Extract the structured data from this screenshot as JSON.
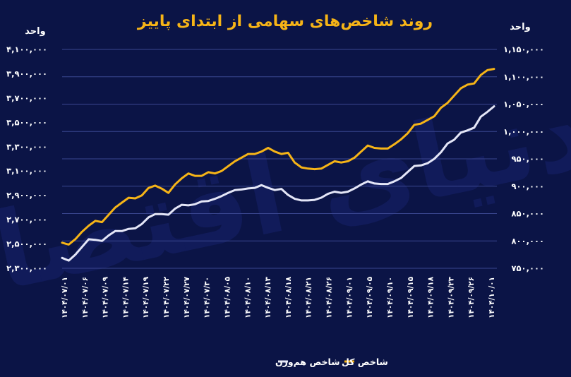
{
  "chart_data": {
    "type": "line",
    "title": "روند شاخص‌های سهامی از ابتدای پاییز",
    "left_axis_label": "واحد",
    "right_axis_label": "واحد",
    "watermark": "دنیای اقتصاد",
    "left_axis": {
      "ylim": [
        2300000,
        4100000
      ],
      "ticks": [
        2300000,
        2500000,
        2700000,
        2900000,
        3100000,
        3300000,
        3500000,
        3700000,
        3900000,
        4100000
      ],
      "tick_labels": [
        "۲,۳۰۰,۰۰۰",
        "۲,۵۰۰,۰۰۰",
        "۲,۷۰۰,۰۰۰",
        "۲,۹۰۰,۰۰۰",
        "۳,۱۰۰,۰۰۰",
        "۳,۳۰۰,۰۰۰",
        "۳,۵۰۰,۰۰۰",
        "۳,۷۰۰,۰۰۰",
        "۳,۹۰۰,۰۰۰",
        "۴,۱۰۰,۰۰۰"
      ]
    },
    "right_axis": {
      "ylim": [
        750000,
        1150000
      ],
      "ticks": [
        750000,
        800000,
        850000,
        900000,
        950000,
        1000000,
        1050000,
        1100000,
        1150000
      ],
      "tick_labels": [
        "۷۵۰,۰۰۰",
        "۸۰۰,۰۰۰",
        "۸۵۰,۰۰۰",
        "۹۰۰,۰۰۰",
        "۹۵۰,۰۰۰",
        "۱,۰۰۰,۰۰۰",
        "۱,۰۵۰,۰۰۰",
        "۱,۱۰۰,۰۰۰",
        "۱,۱۵۰,۰۰۰"
      ]
    },
    "x_tick_labels": [
      "۱۴۰۴/۰۷/۰۱",
      "۱۴۰۴/۰۷/۰۶",
      "۱۴۰۴/۰۷/۰۹",
      "۱۴۰۴/۰۷/۱۴",
      "۱۴۰۴/۰۷/۱۹",
      "۱۴۰۴/۰۷/۲۲",
      "۱۴۰۴/۰۷/۲۷",
      "۱۴۰۴/۰۷/۳۰",
      "۱۴۰۴/۰۸/۰۵",
      "۱۴۰۴/۰۸/۱۰",
      "۱۴۰۴/۰۸/۱۳",
      "۱۴۰۴/۰۸/۱۸",
      "۱۴۰۴/۰۸/۲۱",
      "۱۴۰۴/۰۸/۲۶",
      "۱۴۰۴/۰۹/۰۱",
      "۱۴۰۴/۰۹/۰۵",
      "۱۴۰۴/۰۹/۱۰",
      "۱۴۰۴/۰۹/۱۵",
      "۱۴۰۴/۰۹/۱۸",
      "۱۴۰۴/۰۹/۲۳",
      "۱۴۰۴/۰۹/۲۶",
      "۱۴۰۴/۱۰/۰۱"
    ],
    "grid": "horizontal",
    "legend_position": "bottom-center",
    "series": [
      {
        "name": "شاخص کل",
        "color": "#f6b417",
        "axis": "left",
        "values": [
          2510000,
          2495000,
          2540000,
          2600000,
          2650000,
          2690000,
          2680000,
          2740000,
          2800000,
          2840000,
          2880000,
          2875000,
          2900000,
          2960000,
          2980000,
          2955000,
          2920000,
          2990000,
          3040000,
          3080000,
          3060000,
          3060000,
          3090000,
          3080000,
          3100000,
          3140000,
          3180000,
          3210000,
          3240000,
          3240000,
          3260000,
          3290000,
          3260000,
          3240000,
          3250000,
          3170000,
          3130000,
          3120000,
          3115000,
          3120000,
          3150000,
          3180000,
          3170000,
          3180000,
          3210000,
          3260000,
          3310000,
          3290000,
          3285000,
          3285000,
          3320000,
          3360000,
          3410000,
          3480000,
          3490000,
          3520000,
          3550000,
          3620000,
          3660000,
          3720000,
          3780000,
          3810000,
          3820000,
          3890000,
          3930000,
          3940000
        ]
      },
      {
        "name": "شاخص هم‌وزن",
        "color": "#e4e6f7",
        "axis": "right",
        "values": [
          769000,
          764000,
          775000,
          789000,
          803000,
          802000,
          800000,
          810000,
          818000,
          818000,
          822000,
          823000,
          831000,
          843000,
          849000,
          849000,
          848000,
          859000,
          866000,
          865000,
          867000,
          872000,
          873000,
          877000,
          882000,
          888000,
          893000,
          894000,
          896000,
          897000,
          902000,
          897000,
          893000,
          895000,
          884000,
          877000,
          874000,
          874000,
          875000,
          879000,
          886000,
          890000,
          888000,
          890000,
          896000,
          903000,
          909000,
          905000,
          904000,
          904000,
          909000,
          915000,
          926000,
          937000,
          938000,
          942000,
          950000,
          962000,
          978000,
          985000,
          998000,
          1002000,
          1007000,
          1027000,
          1036000,
          1046000
        ]
      }
    ]
  }
}
